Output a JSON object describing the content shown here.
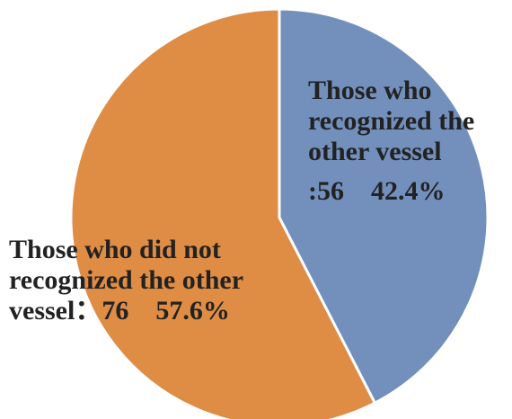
{
  "chart_data": {
    "type": "pie",
    "start_angle_deg": 0,
    "direction": "clockwise",
    "slices": [
      {
        "label_lines": [
          "Those who",
          "recognized the",
          "other vessel",
          ":56    42.4%"
        ],
        "value": 56,
        "percent": 42.4,
        "color": "#7390bd"
      },
      {
        "label_lines": [
          "Those who did not",
          "recognized the other",
          "vessel：76    57.6%"
        ],
        "value": 76,
        "percent": 57.6,
        "color": "#df8c45"
      }
    ],
    "slice_border_color": "#ffffff"
  }
}
